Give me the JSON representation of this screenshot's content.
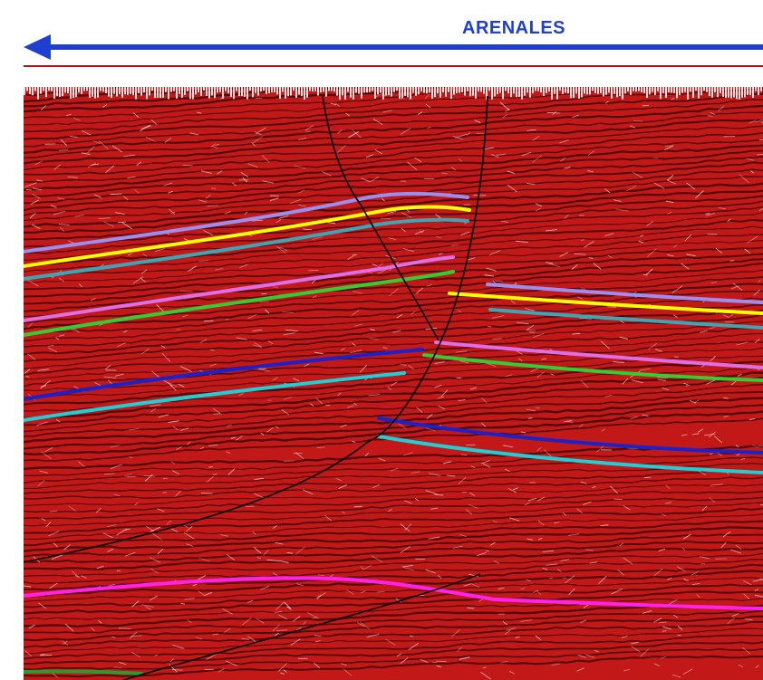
{
  "header": {
    "label": "ARENALES",
    "arrow_color": "#1f3fd0",
    "line_color": "#b41414"
  },
  "section": {
    "background": "#c21818",
    "trace_color": "#2a0505",
    "noise_color": "#ffffff",
    "horizons": [
      {
        "name": "lavender-horizon",
        "color": "#9a8ff0"
      },
      {
        "name": "yellow-horizon",
        "color": "#ffff00"
      },
      {
        "name": "teal-horizon",
        "color": "#3ca6b4"
      },
      {
        "name": "violet-horizon",
        "color": "#dd6ee6"
      },
      {
        "name": "green-horizon",
        "color": "#33cc33"
      },
      {
        "name": "blue-horizon",
        "color": "#1a22cc"
      },
      {
        "name": "cyan-horizon",
        "color": "#1ecfd6"
      },
      {
        "name": "magenta-horizon",
        "color": "#ff22ee"
      },
      {
        "name": "deep-green-horizon",
        "color": "#2e9a2e"
      }
    ],
    "fault_color": "#000000"
  }
}
